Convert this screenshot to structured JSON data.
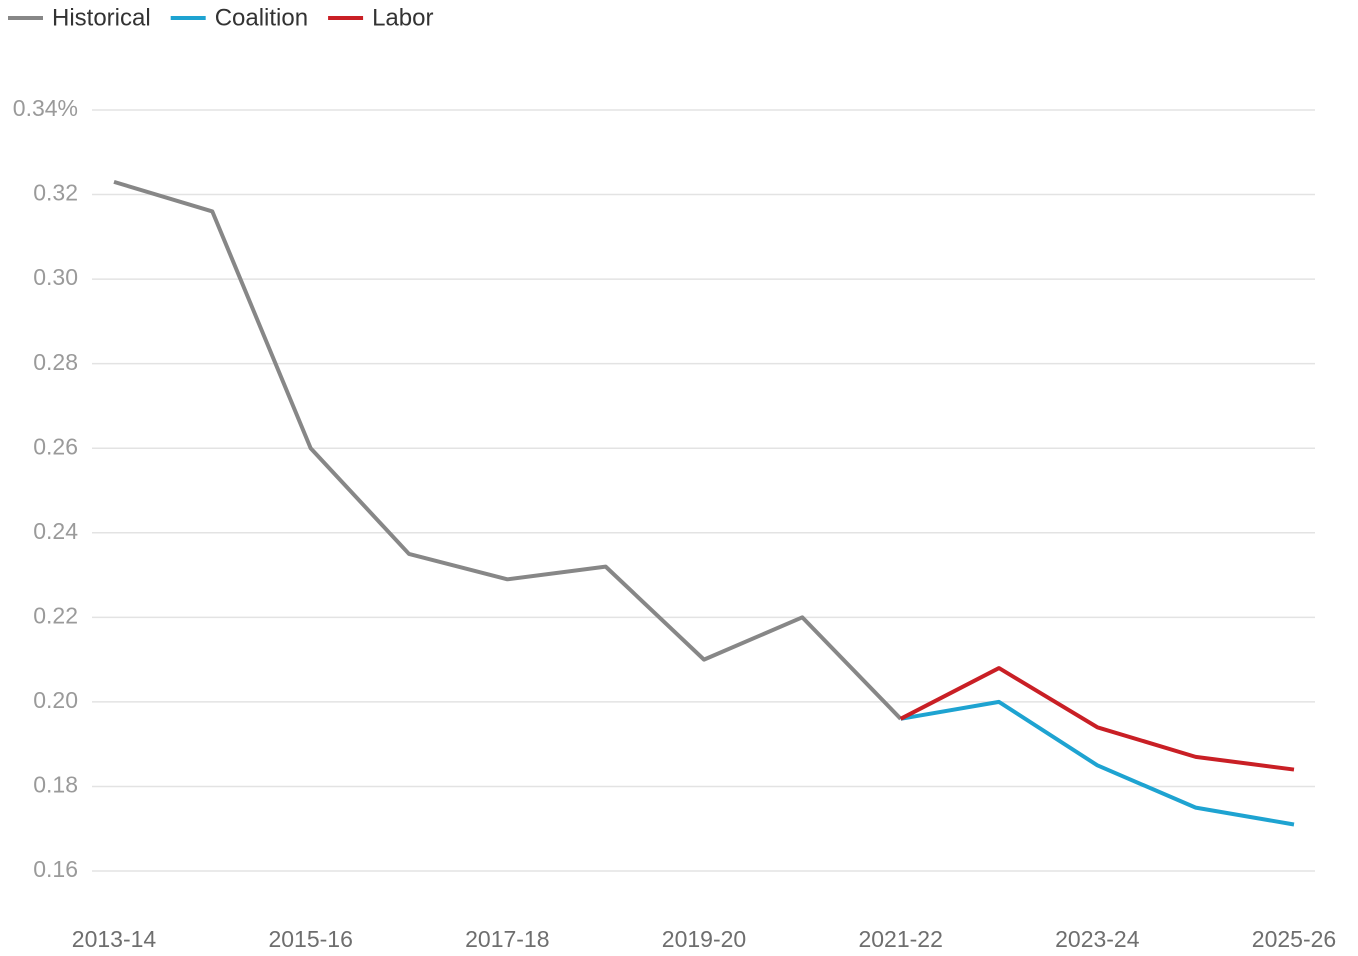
{
  "chart_data": {
    "type": "line",
    "categories": [
      "2013-14",
      null,
      "2015-16",
      null,
      "2017-18",
      null,
      "2019-20",
      null,
      "2021-22",
      null,
      "2023-24",
      null,
      "2025-26"
    ],
    "series": [
      {
        "name": "Historical",
        "color": "#878787",
        "values": [
          0.323,
          0.316,
          0.26,
          0.235,
          0.229,
          0.232,
          0.21,
          0.22,
          0.196,
          null,
          null,
          null,
          null
        ]
      },
      {
        "name": "Coalition",
        "color": "#1ea3d1",
        "values": [
          null,
          null,
          null,
          null,
          null,
          null,
          null,
          null,
          0.196,
          0.2,
          0.185,
          0.175,
          0.171
        ]
      },
      {
        "name": "Labor",
        "color": "#c91f25",
        "values": [
          null,
          null,
          null,
          null,
          null,
          null,
          null,
          null,
          0.196,
          0.208,
          0.194,
          0.187,
          0.184
        ]
      }
    ],
    "ylim": [
      0.15,
      0.34
    ],
    "yticks": [
      {
        "value": 0.16,
        "label": "0.16"
      },
      {
        "value": 0.18,
        "label": "0.18"
      },
      {
        "value": 0.2,
        "label": "0.20"
      },
      {
        "value": 0.22,
        "label": "0.22"
      },
      {
        "value": 0.24,
        "label": "0.24"
      },
      {
        "value": 0.26,
        "label": "0.26"
      },
      {
        "value": 0.28,
        "label": "0.28"
      },
      {
        "value": 0.3,
        "label": "0.30"
      },
      {
        "value": 0.32,
        "label": "0.32"
      },
      {
        "value": 0.34,
        "label": "0.34%"
      }
    ],
    "grid": true,
    "legend": "top-left"
  }
}
